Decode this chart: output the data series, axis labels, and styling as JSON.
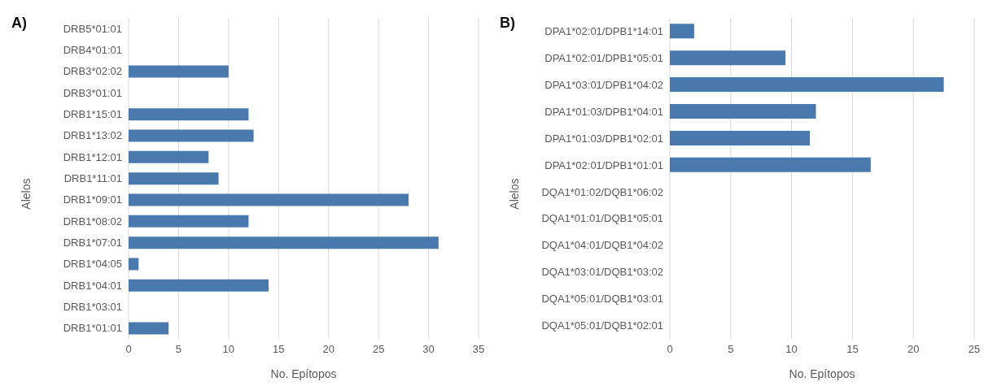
{
  "chart_data": [
    {
      "type": "bar",
      "orientation": "horizontal",
      "title": "A)",
      "xlabel": "No. Epítopos",
      "ylabel": "Alelos",
      "categories": [
        "DRB5*01:01",
        "DRB4*01:01",
        "DRB3*02:02",
        "DRB3*01:01",
        "DRB1*15:01",
        "DRB1*13:02",
        "DRB1*12:01",
        "DRB1*11:01",
        "DRB1*09:01",
        "DRB1*08:02",
        "DRB1*07:01",
        "DRB1*04:05",
        "DRB1*04:01",
        "DRB1*03:01",
        "DRB1*01:01"
      ],
      "values": [
        0,
        0,
        10,
        0,
        12,
        12.5,
        8,
        9,
        28,
        12,
        31,
        1,
        14,
        0,
        4
      ],
      "color": "#4a7aad",
      "xlim": [
        0,
        35
      ],
      "xticks": [
        0,
        5,
        10,
        15,
        20,
        25,
        30,
        35
      ],
      "grid": "x"
    },
    {
      "type": "bar",
      "orientation": "horizontal",
      "title": "B)",
      "xlabel": "No. Epítopos",
      "ylabel": "Alelos",
      "categories": [
        "DPA1*02:01/DPB1*14:01",
        "DPA1*02:01/DPB1*05:01",
        "DPA1*03:01/DPB1*04:02",
        "DPA1*01:03/DPB1*04:01",
        "DPA1*01:03/DPB1*02:01",
        "DPA1*02:01/DPB1*01:01",
        "DQA1*01:02/DQB1*06:02",
        "DQA1*01:01/DQB1*05:01",
        "DQA1*04:01/DQB1*04:02",
        "DQA1*03:01/DQB1*03:02",
        "DQA1*05:01/DQB1*03:01",
        "DQA1*05:01/DQB1*02:01"
      ],
      "values": [
        2,
        9.5,
        22.5,
        12,
        11.5,
        16.5,
        0,
        0,
        0,
        0,
        0,
        0
      ],
      "color": "#4a7aad",
      "xlim": [
        0,
        25
      ],
      "xticks": [
        0,
        5,
        10,
        15,
        20,
        25
      ],
      "grid": "x"
    }
  ]
}
